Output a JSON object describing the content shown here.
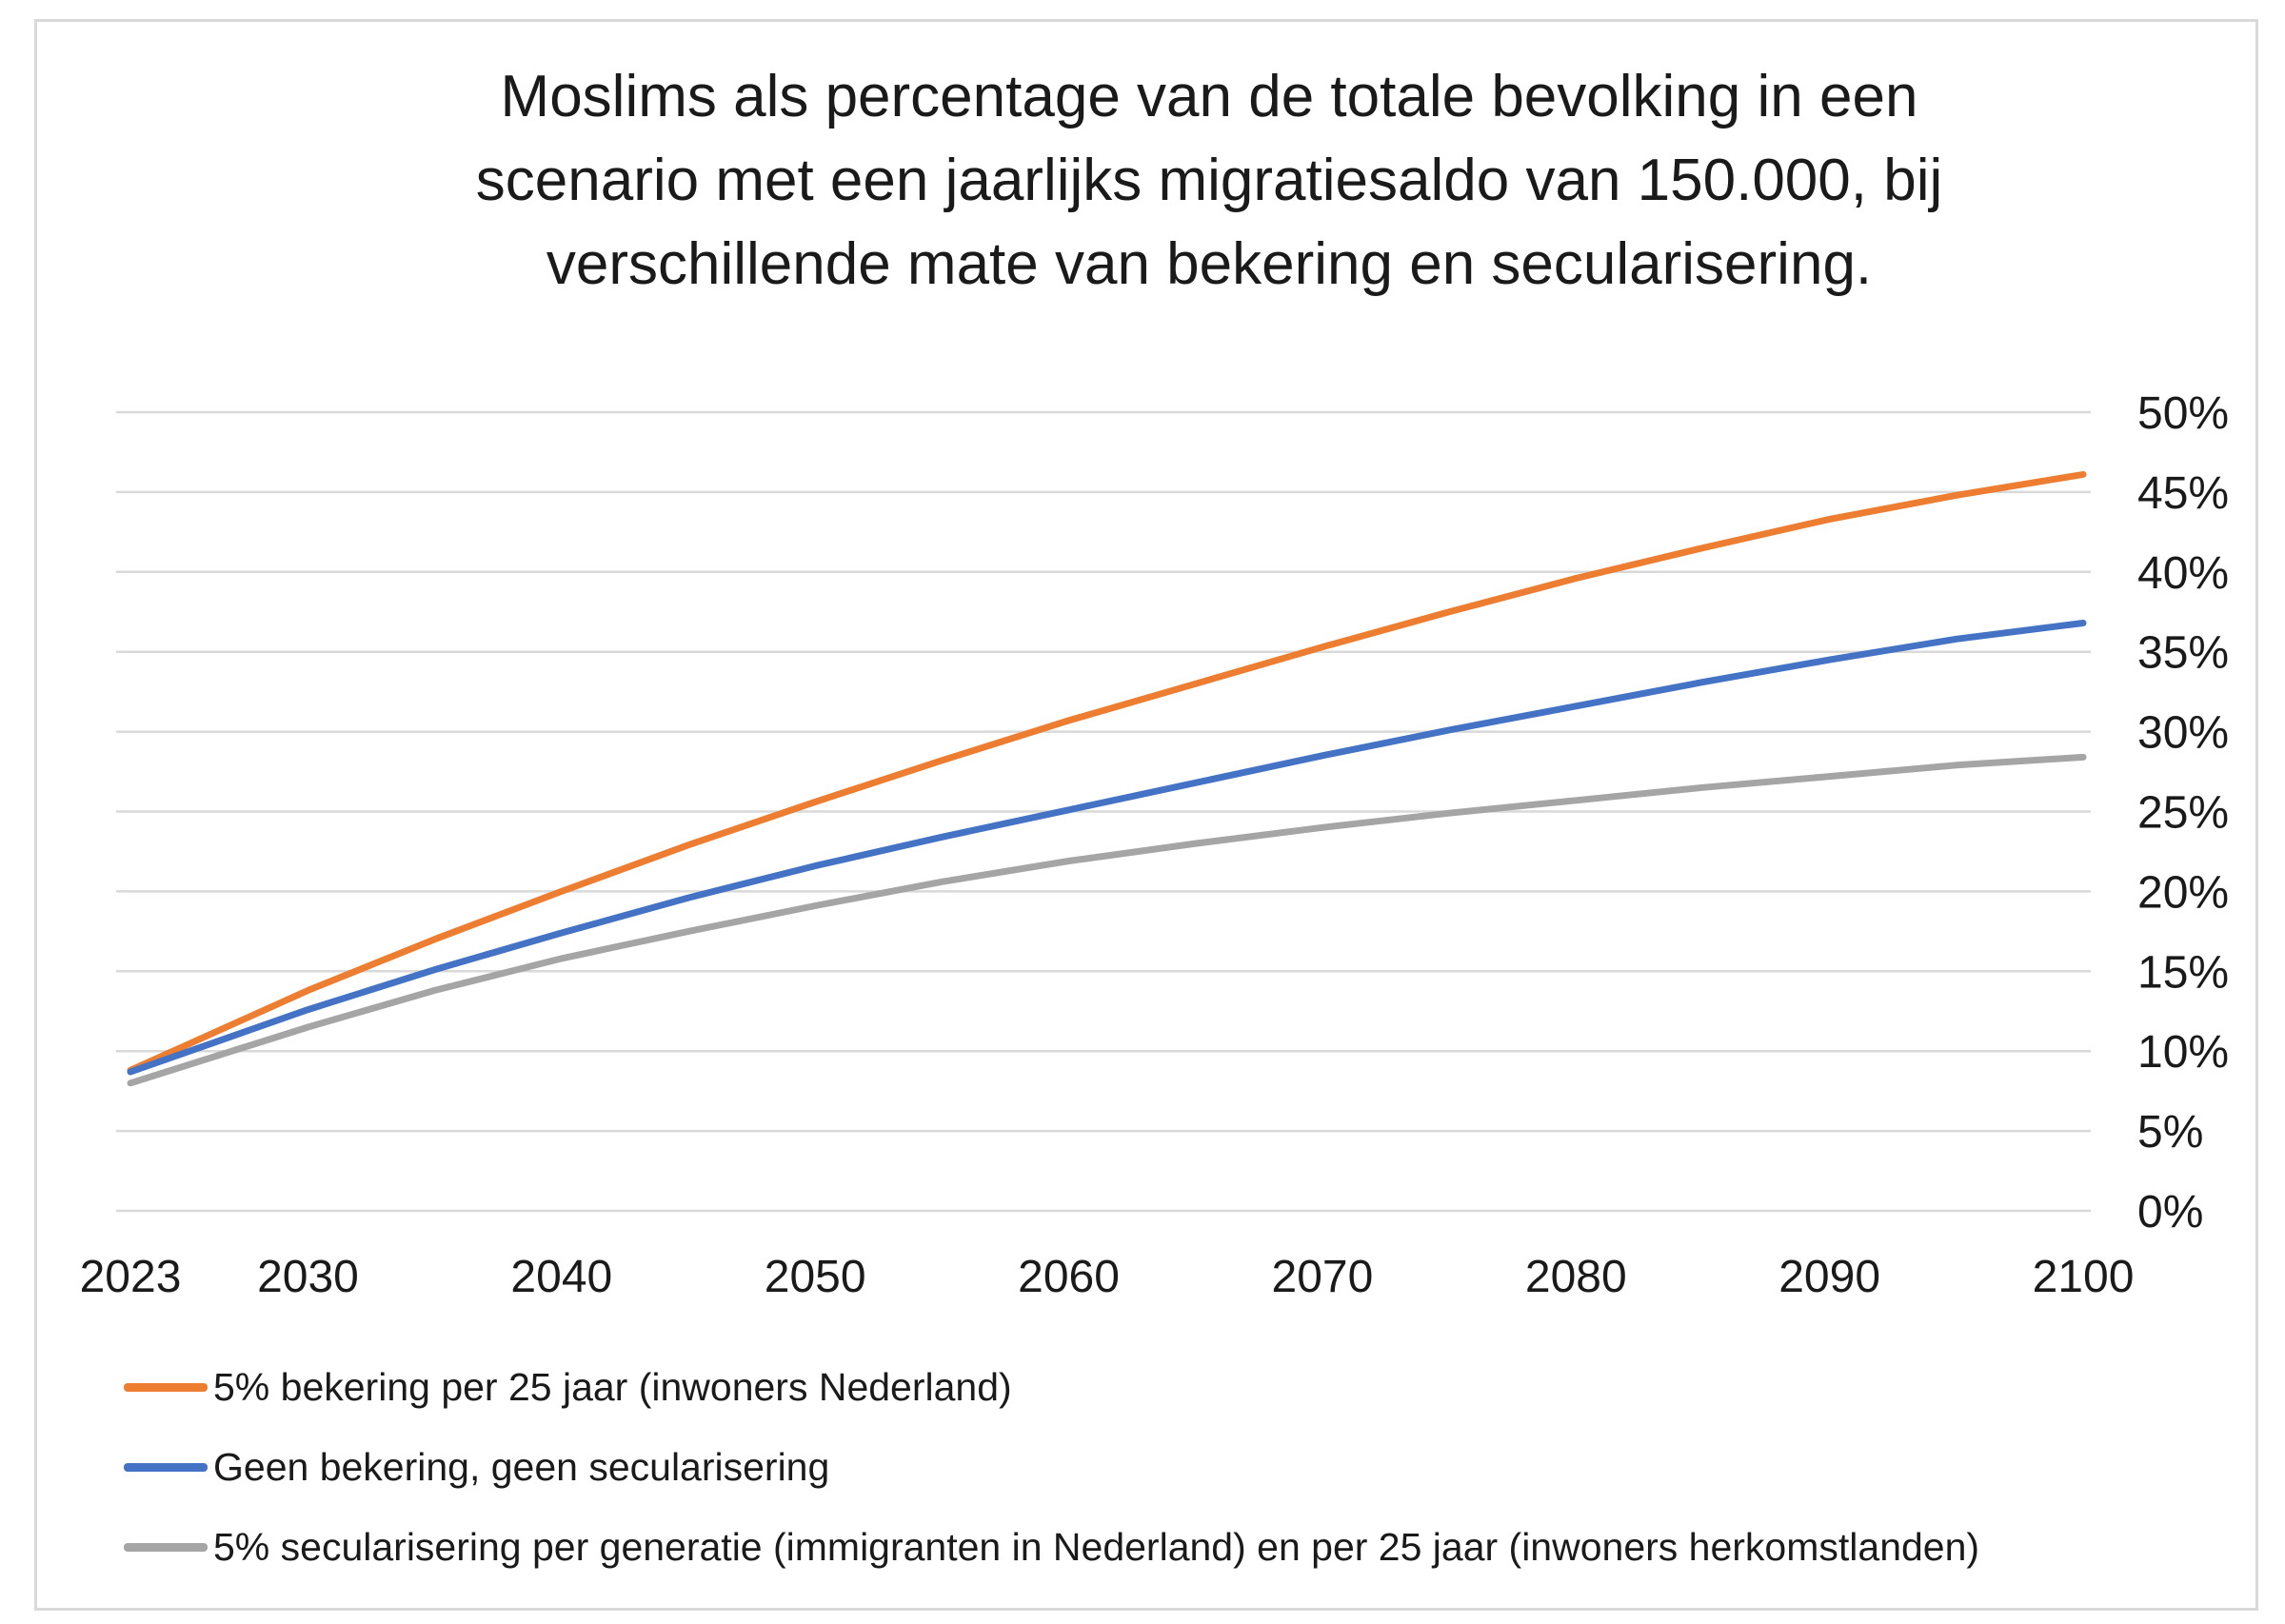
{
  "chart_data": {
    "type": "line",
    "title_lines": [
      "Moslims als percentage van de totale bevolking in een",
      "scenario met een jaarlijks migratiesaldo van 150.000, bij",
      "verschillende mate van bekering en secularisering."
    ],
    "xlabel": "",
    "ylabel": "",
    "x_ticks": [
      "2023",
      "2030",
      "2040",
      "2050",
      "2060",
      "2070",
      "2080",
      "2090",
      "2100"
    ],
    "x_tick_values": [
      2023,
      2030,
      2040,
      2050,
      2060,
      2070,
      2080,
      2090,
      2100
    ],
    "y_ticks": [
      "0%",
      "5%",
      "10%",
      "15%",
      "20%",
      "25%",
      "30%",
      "35%",
      "40%",
      "45%",
      "50%"
    ],
    "xlim": [
      2023,
      2100
    ],
    "ylim": [
      0,
      50
    ],
    "y_axis_position": "right",
    "grid": "horizontal",
    "legend_position": "bottom",
    "series": [
      {
        "name": "5% bekering per 25 jaar (inwoners Nederland)",
        "color": "#ED7D31",
        "x": [
          2023,
          2030,
          2035,
          2040,
          2045,
          2050,
          2055,
          2060,
          2065,
          2070,
          2075,
          2080,
          2085,
          2090,
          2095,
          2100
        ],
        "y": [
          8.8,
          13.8,
          17.0,
          20.0,
          22.9,
          25.6,
          28.2,
          30.7,
          33.0,
          35.3,
          37.5,
          39.6,
          41.5,
          43.3,
          44.8,
          46.1
        ]
      },
      {
        "name": "Geen bekering, geen secularisering",
        "color": "#4472C4",
        "x": [
          2023,
          2030,
          2035,
          2040,
          2045,
          2050,
          2055,
          2060,
          2065,
          2070,
          2075,
          2080,
          2085,
          2090,
          2095,
          2100
        ],
        "y": [
          8.7,
          12.6,
          15.1,
          17.4,
          19.6,
          21.6,
          23.4,
          25.1,
          26.8,
          28.5,
          30.1,
          31.6,
          33.1,
          34.5,
          35.8,
          36.8
        ]
      },
      {
        "name": "5% secularisering per generatie (immigranten in Nederland) en per 25 jaar (inwoners herkomstlanden)",
        "color": "#A5A5A5",
        "x": [
          2023,
          2030,
          2035,
          2040,
          2045,
          2050,
          2055,
          2060,
          2065,
          2070,
          2075,
          2080,
          2085,
          2090,
          2095,
          2100
        ],
        "y": [
          8.0,
          11.5,
          13.8,
          15.8,
          17.5,
          19.1,
          20.6,
          21.9,
          23.0,
          24.0,
          24.9,
          25.7,
          26.5,
          27.2,
          27.9,
          28.4
        ]
      }
    ]
  }
}
